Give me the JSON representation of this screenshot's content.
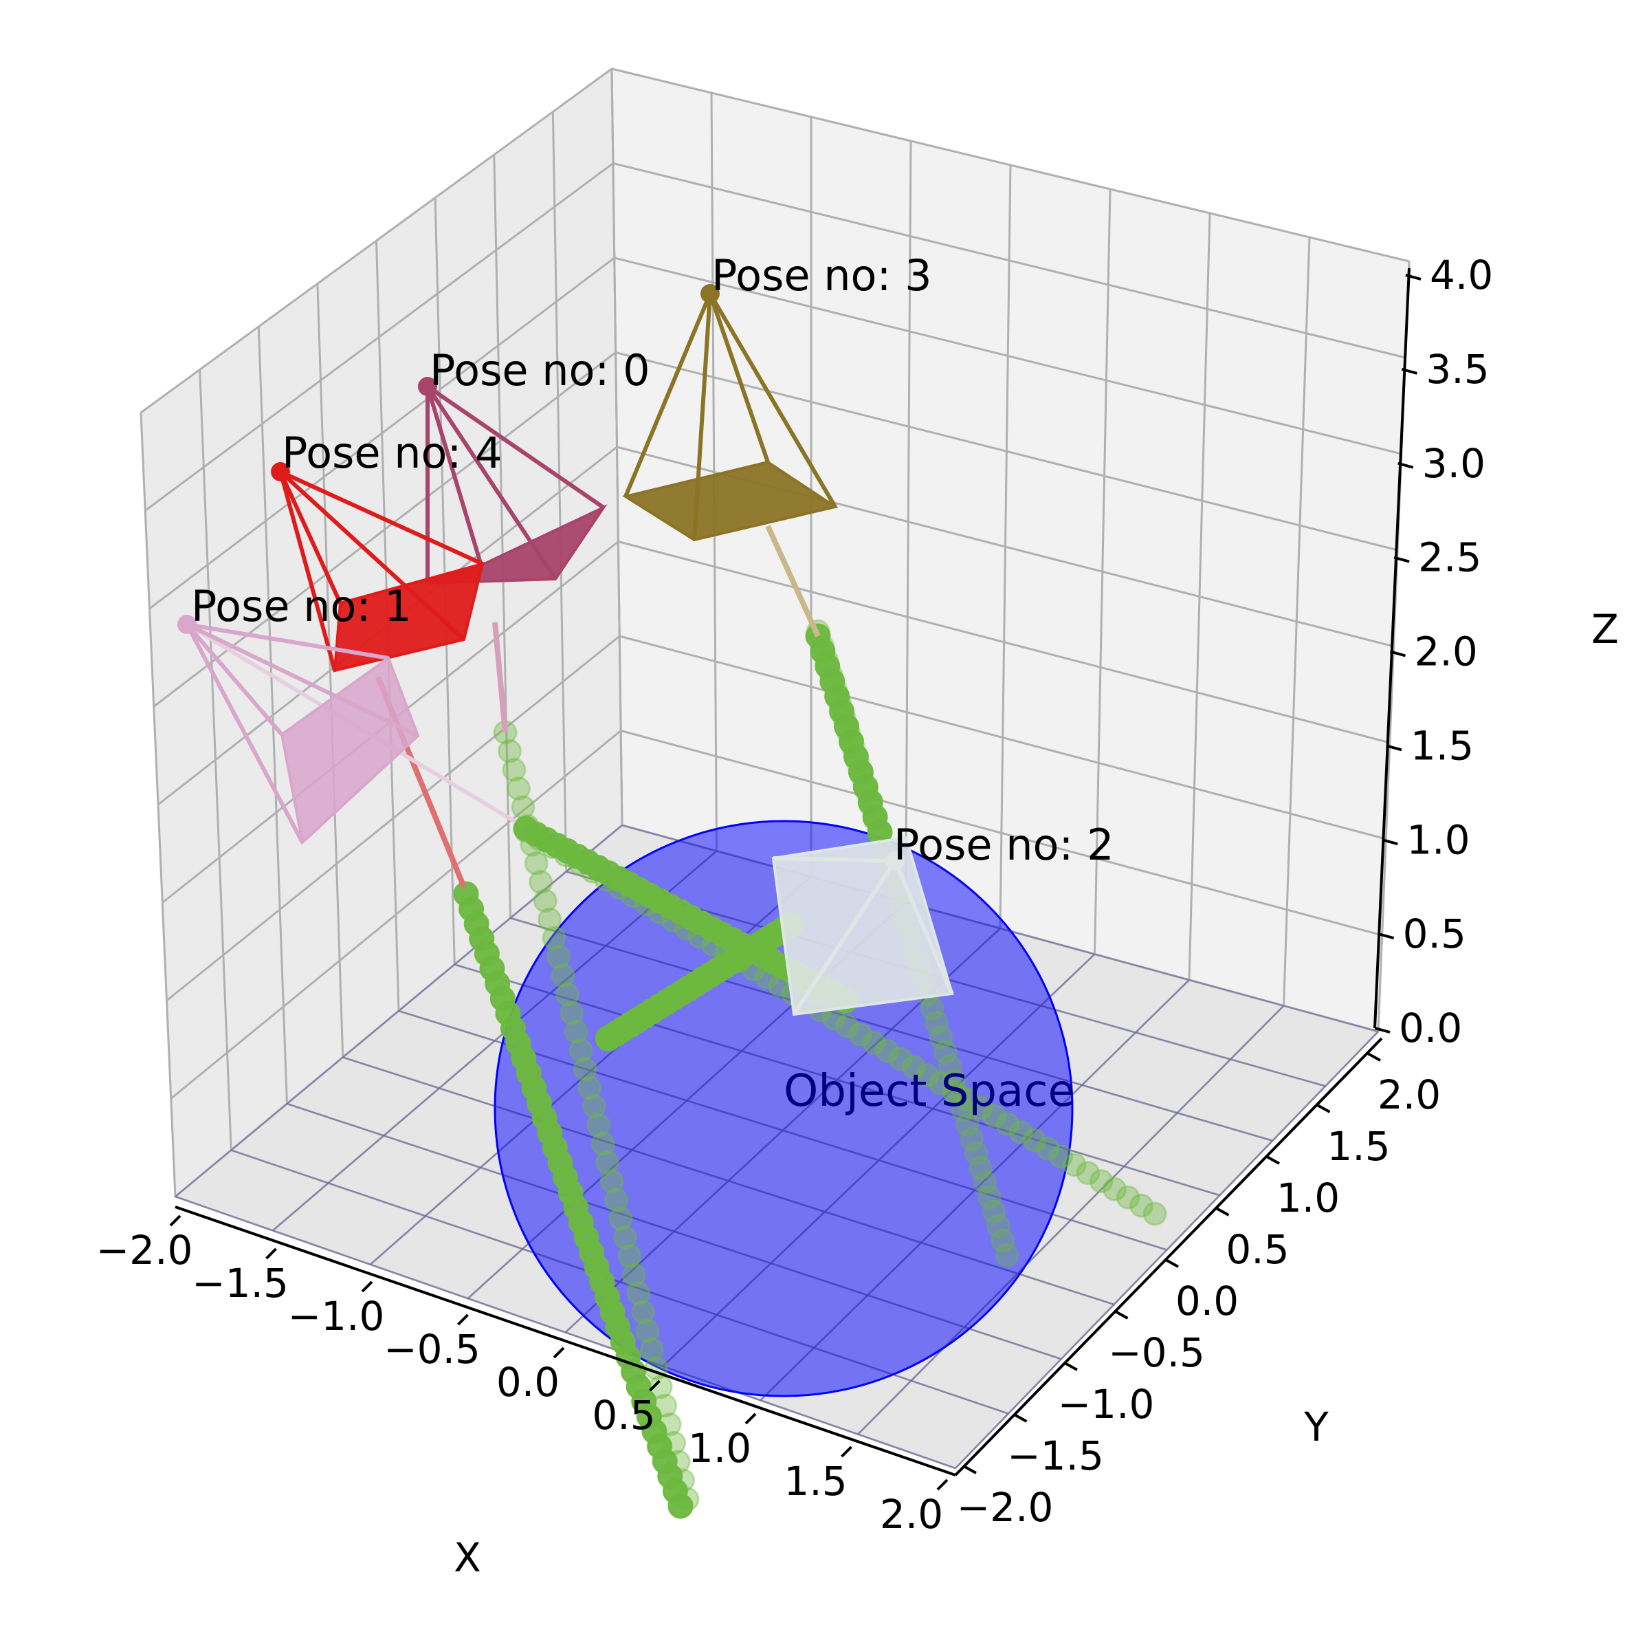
{
  "chart_data": {
    "type": "scatter3d",
    "xlabel": "X",
    "ylabel": "Y",
    "zlabel": "Z",
    "xlim": [
      -2.0,
      2.0
    ],
    "ylim": [
      -2.0,
      2.0
    ],
    "zlim": [
      0.0,
      4.0
    ],
    "x_ticks": [
      "−2.0",
      "−1.5",
      "−1.0",
      "−0.5",
      "0.0",
      "0.5",
      "1.0",
      "1.5",
      "2.0"
    ],
    "y_ticks": [
      "−2.0",
      "−1.5",
      "−1.0",
      "−0.5",
      "0.0",
      "0.5",
      "1.0",
      "1.5",
      "2.0"
    ],
    "z_ticks": [
      "0.0",
      "0.5",
      "1.0",
      "1.5",
      "2.0",
      "2.5",
      "3.0",
      "3.5",
      "4.0"
    ],
    "grid": true,
    "object_space": {
      "label": "Object Space",
      "color": "#0000ff"
    },
    "ray_color": "#6db83f",
    "poses": [
      {
        "label": "Pose no: 0",
        "color": "#a8446a"
      },
      {
        "label": "Pose no: 1",
        "color": "#d9a6cc"
      },
      {
        "label": "Pose no: 2",
        "color": "#dfe6e6"
      },
      {
        "label": "Pose no: 3",
        "color": "#8b7425"
      },
      {
        "label": "Pose no: 4",
        "color": "#e01b1b"
      }
    ]
  }
}
